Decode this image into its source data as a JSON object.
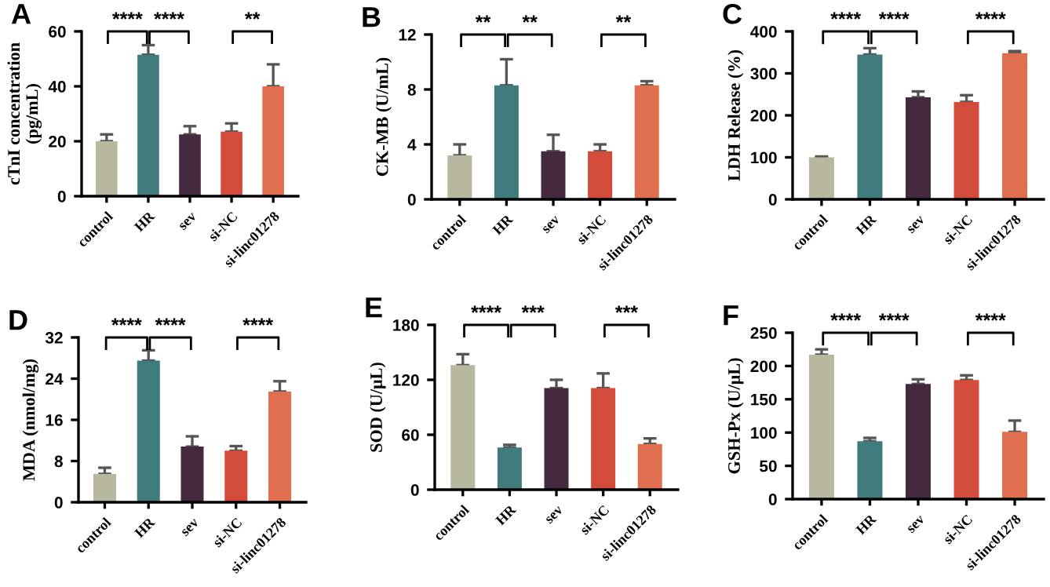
{
  "chart_data": [
    {
      "type": "bar",
      "title": "A",
      "ylabel": "cTnI concentration\n(pg/mL)",
      "categories": [
        "control",
        "HR",
        "sev",
        "si-NC",
        "si-linc01278"
      ],
      "values": [
        20,
        51.5,
        22.5,
        23.5,
        40
      ],
      "errors": [
        [
          20,
          22.5
        ],
        [
          51.5,
          55
        ],
        [
          22.5,
          25.5
        ],
        [
          23.5,
          26.5
        ],
        [
          40,
          48
        ]
      ],
      "colors": [
        "#b8b7a0",
        "#3f7a7c",
        "#45293f",
        "#d24b3b",
        "#e06f4f"
      ],
      "ylim": [
        0,
        60
      ],
      "yticks": [
        0,
        20,
        40,
        60
      ],
      "grid": false,
      "legend": false,
      "annotations": [
        "****",
        "****",
        "**"
      ]
    },
    {
      "type": "bar",
      "title": "B",
      "ylabel": "CK-MB (U/mL)",
      "categories": [
        "control",
        "HR",
        "sev",
        "si-NC",
        "si-linc01278"
      ],
      "values": [
        3.2,
        8.3,
        3.5,
        3.5,
        8.3
      ],
      "errors": [
        [
          3.2,
          4.0
        ],
        [
          8.3,
          10.2
        ],
        [
          3.5,
          4.7
        ],
        [
          3.5,
          4.0
        ],
        [
          8.3,
          8.6
        ]
      ],
      "colors": [
        "#b8b7a0",
        "#3f7a7c",
        "#45293f",
        "#d24b3b",
        "#e06f4f"
      ],
      "ylim": [
        0,
        12
      ],
      "yticks": [
        0,
        4,
        8,
        12
      ],
      "grid": false,
      "legend": false,
      "annotations": [
        "**",
        "**",
        "**"
      ]
    },
    {
      "type": "bar",
      "title": "C",
      "ylabel": "LDH Release (%)",
      "categories": [
        "control",
        "HR",
        "sev",
        "si-NC",
        "si-linc01278"
      ],
      "values": [
        100,
        345,
        243,
        232,
        348
      ],
      "errors": [
        [
          100,
          102
        ],
        [
          345,
          360
        ],
        [
          243,
          257
        ],
        [
          232,
          248
        ],
        [
          348,
          353
        ]
      ],
      "colors": [
        "#b8b7a0",
        "#3f7a7c",
        "#45293f",
        "#d24b3b",
        "#e06f4f"
      ],
      "ylim": [
        0,
        400
      ],
      "yticks": [
        0,
        100,
        200,
        300,
        400
      ],
      "grid": false,
      "legend": false,
      "annotations": [
        "****",
        "****",
        "****"
      ]
    },
    {
      "type": "bar",
      "title": "D",
      "ylabel": "MDA (nmol/mg)",
      "categories": [
        "control",
        "HR",
        "sev",
        "si-NC",
        "si-linc01278"
      ],
      "values": [
        5.5,
        27.5,
        10.8,
        10,
        21.5
      ],
      "errors": [
        [
          5.5,
          6.7
        ],
        [
          27.5,
          29.5
        ],
        [
          10.8,
          12.8
        ],
        [
          10,
          10.9
        ],
        [
          21.5,
          23.5
        ]
      ],
      "colors": [
        "#b8b7a0",
        "#3f7a7c",
        "#45293f",
        "#d24b3b",
        "#e06f4f"
      ],
      "ylim": [
        0,
        32
      ],
      "yticks": [
        0,
        8,
        16,
        24,
        32
      ],
      "grid": false,
      "legend": false,
      "annotations": [
        "****",
        "****",
        "****"
      ]
    },
    {
      "type": "bar",
      "title": "E",
      "ylabel": "SOD (U/μL)",
      "categories": [
        "control",
        "HR",
        "sev",
        "si-NC",
        "si-linc01278"
      ],
      "values": [
        136,
        46,
        111,
        111,
        50
      ],
      "errors": [
        [
          136,
          148
        ],
        [
          46,
          49
        ],
        [
          111,
          120
        ],
        [
          111,
          127
        ],
        [
          50,
          56
        ]
      ],
      "colors": [
        "#b8b7a0",
        "#3f7a7c",
        "#45293f",
        "#d24b3b",
        "#e06f4f"
      ],
      "ylim": [
        0,
        180
      ],
      "yticks": [
        0,
        60,
        120,
        180
      ],
      "grid": false,
      "legend": false,
      "annotations": [
        "****",
        "***",
        "***"
      ]
    },
    {
      "type": "bar",
      "title": "F",
      "ylabel": "GSH-Px (U/μL)",
      "categories": [
        "control",
        "HR",
        "sev",
        "si-NC",
        "si-linc01278"
      ],
      "values": [
        217,
        87,
        173,
        179,
        101
      ],
      "errors": [
        [
          217,
          225
        ],
        [
          87,
          92
        ],
        [
          173,
          180
        ],
        [
          179,
          186
        ],
        [
          101,
          118
        ]
      ],
      "colors": [
        "#b8b7a0",
        "#3f7a7c",
        "#45293f",
        "#d24b3b",
        "#e06f4f"
      ],
      "ylim": [
        0,
        250
      ],
      "yticks": [
        0,
        50,
        100,
        150,
        200,
        250
      ],
      "grid": false,
      "legend": false,
      "annotations": [
        "****",
        "****",
        "****"
      ]
    }
  ]
}
